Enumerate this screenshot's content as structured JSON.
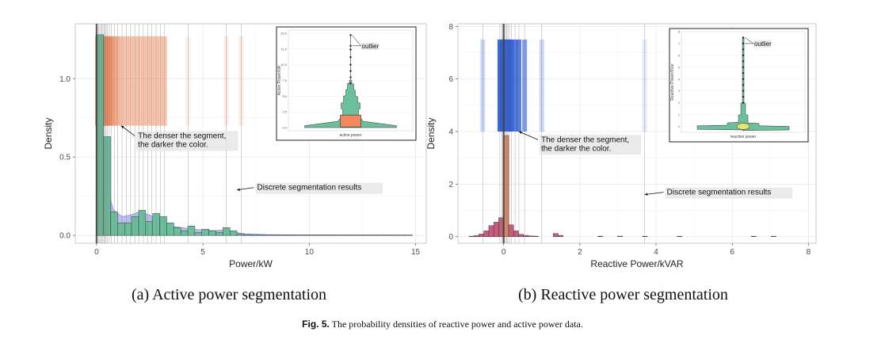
{
  "chart_data": [
    {
      "type": "bar",
      "subcaption": "(a) Active power segmentation",
      "xlabel": "Power/kW",
      "ylabel": "Density",
      "xlim": [
        -1,
        15.5
      ],
      "ylim": [
        -0.05,
        1.35
      ],
      "xticks": [
        "0",
        "5",
        "10",
        "15"
      ],
      "yticks": [
        "0.0",
        "0.5",
        "1.0"
      ],
      "bin_width": 0.33,
      "bins": [
        {
          "x": 0.0,
          "y": 1.28
        },
        {
          "x": 0.33,
          "y": 0.63
        },
        {
          "x": 0.66,
          "y": 0.15
        },
        {
          "x": 0.99,
          "y": 0.08
        },
        {
          "x": 1.32,
          "y": 0.08
        },
        {
          "x": 1.65,
          "y": 0.12
        },
        {
          "x": 1.98,
          "y": 0.16
        },
        {
          "x": 2.31,
          "y": 0.09
        },
        {
          "x": 2.64,
          "y": 0.14
        },
        {
          "x": 2.97,
          "y": 0.12
        },
        {
          "x": 3.3,
          "y": 0.08
        },
        {
          "x": 3.63,
          "y": 0.05
        },
        {
          "x": 3.96,
          "y": 0.03
        },
        {
          "x": 4.29,
          "y": 0.06
        },
        {
          "x": 4.62,
          "y": 0.02
        },
        {
          "x": 4.95,
          "y": 0.04
        },
        {
          "x": 5.28,
          "y": 0.03
        },
        {
          "x": 5.61,
          "y": 0.02
        },
        {
          "x": 5.94,
          "y": 0.05
        },
        {
          "x": 6.27,
          "y": 0.03
        },
        {
          "x": 6.6,
          "y": 0.01
        },
        {
          "x": 6.93,
          "y": 0.005
        },
        {
          "x": 7.26,
          "y": 0.003
        },
        {
          "x": 7.59,
          "y": 0.003
        },
        {
          "x": 7.92,
          "y": 0.002
        },
        {
          "x": 8.25,
          "y": 0.002
        },
        {
          "x": 8.58,
          "y": 0.002
        },
        {
          "x": 8.91,
          "y": 0.002
        },
        {
          "x": 9.24,
          "y": 0.002
        },
        {
          "x": 9.57,
          "y": 0.002
        },
        {
          "x": 9.9,
          "y": 0.002
        },
        {
          "x": 10.23,
          "y": 0.002
        },
        {
          "x": 10.56,
          "y": 0.002
        },
        {
          "x": 10.89,
          "y": 0.002
        },
        {
          "x": 11.22,
          "y": 0.002
        },
        {
          "x": 11.55,
          "y": 0.002
        },
        {
          "x": 11.88,
          "y": 0.002
        },
        {
          "x": 12.21,
          "y": 0.002
        },
        {
          "x": 12.54,
          "y": 0.002
        },
        {
          "x": 12.87,
          "y": 0.002
        },
        {
          "x": 13.2,
          "y": 0.002
        },
        {
          "x": 13.53,
          "y": 0.002
        },
        {
          "x": 13.86,
          "y": 0.002
        },
        {
          "x": 14.19,
          "y": 0.002
        },
        {
          "x": 14.52,
          "y": 0.002
        }
      ],
      "density": [
        [
          0.0,
          1.25
        ],
        [
          0.15,
          0.95
        ],
        [
          0.3,
          0.55
        ],
        [
          0.5,
          0.3
        ],
        [
          0.8,
          0.16
        ],
        [
          1.2,
          0.12
        ],
        [
          1.6,
          0.13
        ],
        [
          2.0,
          0.15
        ],
        [
          2.5,
          0.13
        ],
        [
          3.0,
          0.09
        ],
        [
          3.5,
          0.06
        ],
        [
          4.0,
          0.05
        ],
        [
          4.5,
          0.04
        ],
        [
          5.0,
          0.035
        ],
        [
          5.5,
          0.03
        ],
        [
          6.0,
          0.035
        ],
        [
          6.5,
          0.02
        ],
        [
          7.0,
          0.01
        ],
        [
          8.0,
          0.005
        ],
        [
          10.0,
          0.002
        ],
        [
          14.8,
          0.001
        ]
      ],
      "breakpoints": [
        0.05,
        0.1,
        0.15,
        0.2,
        0.25,
        0.3,
        0.35,
        0.4,
        0.45,
        0.5,
        0.6,
        0.7,
        0.85,
        1.0,
        1.2,
        1.4,
        1.6,
        1.8,
        2.0,
        2.2,
        2.4,
        2.6,
        2.8,
        3.0,
        3.2,
        4.3,
        6.1,
        6.8
      ],
      "segment_band": {
        "y_bottom": 0.7,
        "y_top": 1.27
      },
      "segment_color": "#f08a5c",
      "bar_fill": "#6bbf9c",
      "density_fill": "#a5a5e8",
      "annotations": [
        {
          "text": "The denser the segment,\nthe darker the color.",
          "x": 1.8,
          "y": 0.62,
          "arrow_to": [
            1.15,
            0.7
          ]
        },
        {
          "text": "Discrete segmentation results",
          "x": 7.4,
          "y": 0.29,
          "arrow_to": [
            6.6,
            0.29
          ]
        }
      ],
      "inset": {
        "type": "violin",
        "ylabel": "Active Power/kW",
        "xlabel": "active power",
        "yticks": [
          "0.0",
          "2.5",
          "5.0",
          "7.5",
          "10.0",
          "12.5",
          "15.0"
        ],
        "ylim": [
          -0.5,
          15.5
        ],
        "outliers": [
          7.0,
          8.0,
          9.0,
          10.0,
          11.2,
          12.4,
          13.0,
          14.7
        ],
        "labels": [
          "outlier"
        ],
        "box_fill": "#f08a5c",
        "violin_fill": "#6bbf9c"
      }
    },
    {
      "type": "bar",
      "subcaption": "(b) Reactive power segmentation",
      "xlabel": "Reactive Power/kVAR",
      "ylabel": "Density",
      "xlim": [
        -1.2,
        8.2
      ],
      "ylim": [
        -0.25,
        8.1
      ],
      "xticks": [
        "0",
        "2",
        "4",
        "6",
        "8"
      ],
      "yticks": [
        "0",
        "2",
        "4",
        "6",
        "8"
      ],
      "bin_width": 0.13,
      "bins": [
        {
          "x": -0.91,
          "y": 0.02
        },
        {
          "x": -0.78,
          "y": 0.04
        },
        {
          "x": -0.65,
          "y": 0.1
        },
        {
          "x": -0.52,
          "y": 0.22
        },
        {
          "x": -0.39,
          "y": 0.42
        },
        {
          "x": -0.26,
          "y": 0.55
        },
        {
          "x": -0.13,
          "y": 0.72
        },
        {
          "x": 0.0,
          "y": 3.85
        },
        {
          "x": 0.13,
          "y": 0.45
        },
        {
          "x": 0.26,
          "y": 0.22
        },
        {
          "x": 0.39,
          "y": 0.09
        },
        {
          "x": 0.52,
          "y": 0.05
        },
        {
          "x": 0.65,
          "y": 0.03
        },
        {
          "x": 0.78,
          "y": 0.02
        },
        {
          "x": 1.3,
          "y": 0.12
        },
        {
          "x": 1.43,
          "y": 0.05
        },
        {
          "x": 2.47,
          "y": 0.02
        },
        {
          "x": 2.99,
          "y": 0.02
        },
        {
          "x": 3.64,
          "y": 0.01
        },
        {
          "x": 4.55,
          "y": 0.01
        },
        {
          "x": 6.5,
          "y": 0.01
        },
        {
          "x": 7.02,
          "y": 0.01
        }
      ],
      "breakpoints": [
        -0.55,
        -0.1,
        -0.05,
        -0.02,
        0.0,
        0.02,
        0.05,
        0.08,
        0.11,
        0.15,
        0.2,
        0.3,
        0.4,
        0.55,
        1.0,
        3.7
      ],
      "segment_band": {
        "y_bottom": 4.0,
        "y_top": 7.5
      },
      "segment_color": "#2b5bd7",
      "bar_fill": "#c95c78",
      "peak_fill": "#ee8a5c",
      "annotations": [
        {
          "text": "The denser the segment,\nthe darker the color.",
          "x": 0.9,
          "y": 3.6,
          "arrow_to": [
            0.4,
            4.0
          ]
        },
        {
          "text": "Discrete segmentation results",
          "x": 4.2,
          "y": 1.6,
          "arrow_to": [
            3.7,
            1.6
          ]
        }
      ],
      "inset": {
        "type": "violin",
        "ylabel": "Reactive Power/kVar",
        "xlabel": "reactive power",
        "yticks": [
          "0",
          "1",
          "2",
          "3",
          "4",
          "5",
          "6",
          "7",
          "8"
        ],
        "ylim": [
          -0.5,
          8.0
        ],
        "outliers": [
          2.0,
          2.5,
          3.0,
          3.5,
          4.0,
          4.5,
          5.0,
          5.5,
          6.0,
          6.5,
          7.0,
          7.5
        ],
        "labels": [
          "outlier"
        ],
        "violin_fill": "#6bbf9c",
        "box_fill": "#e8e36a"
      }
    }
  ],
  "figure": {
    "caption_label": "Fig. 5.",
    "caption_text": "The probability densities of reactive power and active power data."
  }
}
